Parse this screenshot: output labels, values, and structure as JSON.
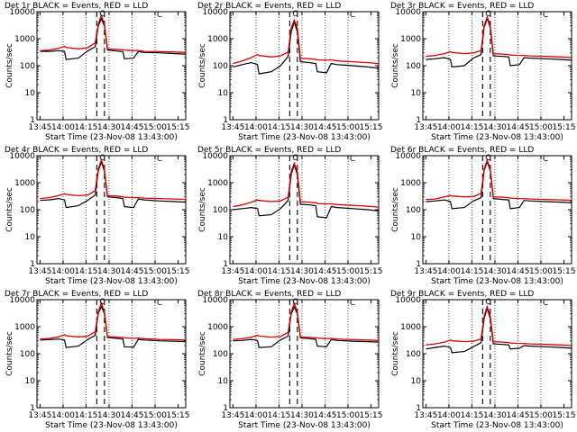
{
  "shared": {
    "ylabel": "Counts/sec",
    "xlabel": "Start Time (23-Nov-08 13:43:00)",
    "x_ticks": [
      "13:45",
      "14:00",
      "14:15",
      "14:30",
      "14:45",
      "15:00",
      "15:15"
    ],
    "y_ticks": [
      "1",
      "10",
      "100",
      "1000",
      "10000"
    ],
    "flare_marker": "C",
    "colors": {
      "events": "#000000",
      "lld": "#dd0000"
    }
  },
  "chart_data": [
    {
      "type": "line",
      "title": "Det 1r BLACK = Events, RED = LLD",
      "x_minutes": [
        2,
        8,
        14,
        18,
        19,
        27,
        33,
        38,
        40,
        42,
        44,
        46,
        52,
        56,
        57,
        63,
        66,
        70,
        80,
        90,
        97
      ],
      "series": [
        {
          "name": "Events",
          "values": [
            340,
            340,
            360,
            340,
            170,
            190,
            350,
            500,
            3000,
            5400,
            3000,
            380,
            350,
            330,
            180,
            190,
            330,
            310,
            300,
            280,
            270
          ]
        },
        {
          "name": "LLD",
          "values": [
            360,
            380,
            440,
            520,
            470,
            420,
            460,
            700,
            3500,
            7300,
            3500,
            420,
            400,
            390,
            380,
            360,
            370,
            340,
            330,
            320,
            310
          ]
        }
      ],
      "ylim": [
        1,
        10000
      ]
    },
    {
      "type": "line",
      "title": "Det 2r BLACK = Events, RED = LLD",
      "x_minutes": [
        2,
        8,
        14,
        18,
        19,
        27,
        33,
        38,
        40,
        42,
        44,
        46,
        52,
        56,
        57,
        63,
        66,
        70,
        80,
        90,
        97
      ],
      "series": [
        {
          "name": "Events",
          "values": [
            90,
            110,
            130,
            110,
            50,
            60,
            100,
            220,
            1800,
            4200,
            1800,
            140,
            130,
            120,
            60,
            55,
            120,
            110,
            100,
            90,
            80
          ]
        },
        {
          "name": "LLD",
          "values": [
            120,
            150,
            200,
            260,
            240,
            210,
            230,
            320,
            2500,
            4900,
            2500,
            190,
            180,
            170,
            165,
            160,
            165,
            150,
            140,
            130,
            120
          ]
        }
      ],
      "ylim": [
        1,
        10000
      ]
    },
    {
      "type": "line",
      "title": "Det 3r BLACK = Events, RED = LLD",
      "x_minutes": [
        2,
        8,
        14,
        18,
        19,
        27,
        33,
        38,
        40,
        42,
        44,
        46,
        52,
        56,
        57,
        63,
        66,
        70,
        80,
        90,
        97
      ],
      "series": [
        {
          "name": "Events",
          "values": [
            170,
            180,
            200,
            170,
            90,
            100,
            190,
            260,
            2600,
            5600,
            2600,
            230,
            220,
            210,
            100,
            110,
            200,
            190,
            180,
            170,
            160
          ]
        },
        {
          "name": "LLD",
          "values": [
            220,
            240,
            280,
            330,
            310,
            280,
            300,
            360,
            3000,
            6400,
            3000,
            280,
            270,
            260,
            250,
            240,
            240,
            230,
            220,
            210,
            200
          ]
        }
      ],
      "ylim": [
        1,
        10000
      ]
    },
    {
      "type": "line",
      "title": "Det 4r BLACK = Events, RED = LLD",
      "x_minutes": [
        2,
        8,
        14,
        18,
        19,
        27,
        33,
        38,
        40,
        42,
        44,
        46,
        52,
        56,
        57,
        63,
        66,
        70,
        80,
        90,
        97
      ],
      "series": [
        {
          "name": "Events",
          "values": [
            220,
            230,
            260,
            230,
            120,
            140,
            220,
            350,
            2700,
            5800,
            2700,
            300,
            280,
            260,
            130,
            120,
            250,
            230,
            210,
            200,
            190
          ]
        },
        {
          "name": "LLD",
          "values": [
            260,
            280,
            330,
            390,
            370,
            330,
            350,
            500,
            3200,
            6900,
            3200,
            330,
            320,
            300,
            290,
            280,
            280,
            270,
            260,
            250,
            240
          ]
        }
      ],
      "ylim": [
        1,
        10000
      ]
    },
    {
      "type": "line",
      "title": "Det 5r BLACK = Events, RED = LLD",
      "x_minutes": [
        2,
        8,
        14,
        18,
        19,
        27,
        33,
        38,
        40,
        42,
        44,
        46,
        52,
        56,
        57,
        63,
        66,
        70,
        80,
        90,
        97
      ],
      "series": [
        {
          "name": "Events",
          "values": [
            100,
            110,
            120,
            110,
            60,
            65,
            110,
            220,
            2000,
            4600,
            2000,
            160,
            150,
            140,
            55,
            50,
            130,
            120,
            110,
            100,
            90
          ]
        },
        {
          "name": "LLD",
          "values": [
            130,
            150,
            190,
            230,
            220,
            200,
            210,
            290,
            2600,
            5300,
            2600,
            200,
            190,
            180,
            170,
            165,
            165,
            155,
            145,
            135,
            125
          ]
        }
      ],
      "ylim": [
        1,
        10000
      ]
    },
    {
      "type": "line",
      "title": "Det 6r BLACK = Events, RED = LLD",
      "x_minutes": [
        2,
        8,
        14,
        18,
        19,
        27,
        33,
        38,
        40,
        42,
        44,
        46,
        52,
        56,
        57,
        63,
        66,
        70,
        80,
        90,
        97
      ],
      "series": [
        {
          "name": "Events",
          "values": [
            200,
            210,
            230,
            200,
            110,
            120,
            210,
            280,
            2800,
            6000,
            2800,
            260,
            240,
            230,
            110,
            120,
            220,
            210,
            200,
            190,
            180
          ]
        },
        {
          "name": "LLD",
          "values": [
            240,
            250,
            300,
            340,
            320,
            300,
            310,
            400,
            3200,
            6800,
            3200,
            300,
            290,
            280,
            270,
            260,
            260,
            250,
            240,
            230,
            220
          ]
        }
      ],
      "ylim": [
        1,
        10000
      ]
    },
    {
      "type": "line",
      "title": "Det 7r BLACK = Events, RED = LLD",
      "x_minutes": [
        2,
        8,
        14,
        18,
        19,
        27,
        33,
        38,
        40,
        42,
        44,
        46,
        52,
        56,
        57,
        63,
        66,
        70,
        80,
        90,
        97
      ],
      "series": [
        {
          "name": "Events",
          "values": [
            320,
            330,
            350,
            320,
            170,
            190,
            330,
            480,
            3100,
            5600,
            3100,
            400,
            370,
            350,
            180,
            175,
            340,
            320,
            300,
            290,
            280
          ]
        },
        {
          "name": "LLD",
          "values": [
            350,
            370,
            420,
            500,
            460,
            420,
            440,
            650,
            3600,
            7600,
            3600,
            430,
            410,
            400,
            390,
            370,
            380,
            360,
            340,
            330,
            320
          ]
        }
      ],
      "ylim": [
        1,
        10000
      ]
    },
    {
      "type": "line",
      "title": "Det 8r BLACK = Events, RED = LLD",
      "x_minutes": [
        2,
        8,
        14,
        18,
        19,
        27,
        33,
        38,
        40,
        42,
        44,
        46,
        52,
        56,
        57,
        63,
        66,
        70,
        80,
        90,
        97
      ],
      "series": [
        {
          "name": "Events",
          "values": [
            300,
            310,
            340,
            310,
            170,
            180,
            320,
            450,
            3000,
            5400,
            3000,
            380,
            360,
            340,
            190,
            180,
            330,
            310,
            290,
            280,
            270
          ]
        },
        {
          "name": "LLD",
          "values": [
            340,
            360,
            410,
            480,
            450,
            410,
            430,
            620,
            3500,
            7400,
            3500,
            420,
            400,
            390,
            380,
            360,
            370,
            350,
            330,
            320,
            310
          ]
        }
      ],
      "ylim": [
        1,
        10000
      ]
    },
    {
      "type": "line",
      "title": "Det 9r BLACK = Events, RED = LLD",
      "x_minutes": [
        2,
        8,
        14,
        18,
        19,
        27,
        33,
        38,
        40,
        42,
        44,
        46,
        52,
        56,
        57,
        63,
        66,
        70,
        80,
        90,
        97
      ],
      "series": [
        {
          "name": "Events",
          "values": [
            150,
            170,
            190,
            170,
            110,
            120,
            180,
            260,
            2000,
            4800,
            2000,
            230,
            220,
            210,
            150,
            160,
            200,
            190,
            180,
            170,
            160
          ]
        },
        {
          "name": "LLD",
          "values": [
            210,
            230,
            270,
            320,
            300,
            280,
            290,
            350,
            2500,
            5600,
            2500,
            280,
            270,
            260,
            250,
            240,
            240,
            230,
            220,
            210,
            200
          ]
        }
      ],
      "ylim": [
        1,
        10000
      ]
    }
  ]
}
